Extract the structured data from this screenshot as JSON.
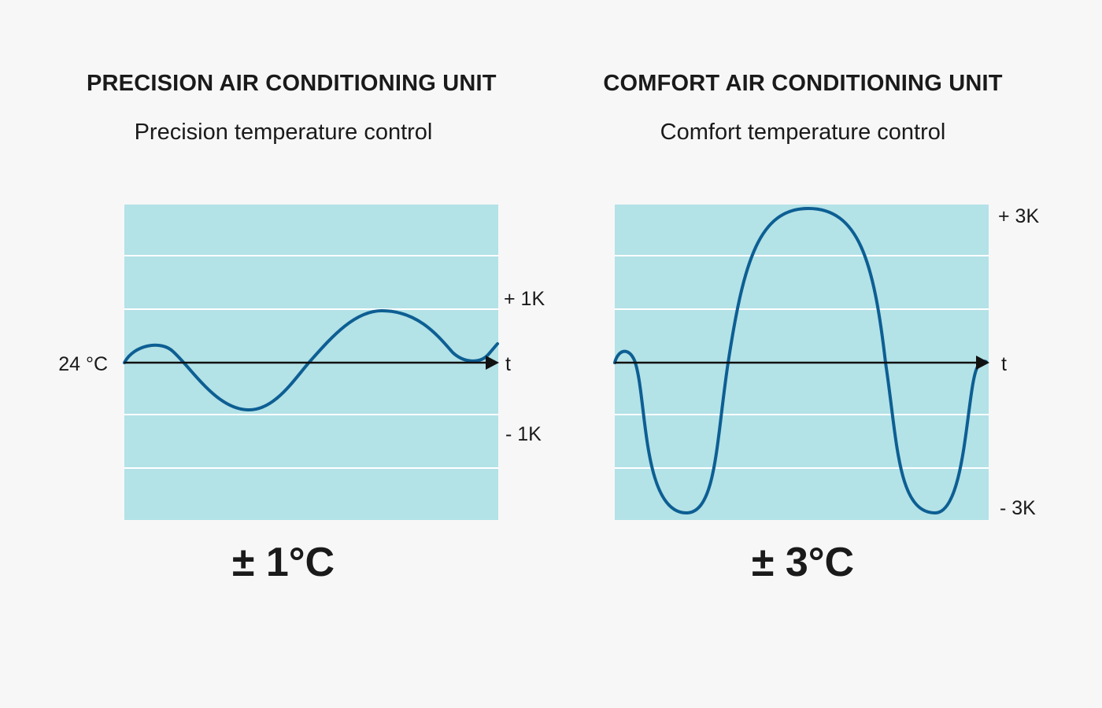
{
  "panels": {
    "left": {
      "title": "PRECISION AIR CONDITIONING UNIT",
      "subtitle": "Precision temperature control",
      "tolerance": "± 1°C",
      "upper_label": "+ 1K",
      "lower_label": "- 1K",
      "time_label": "t",
      "baseline_label": "24 °C"
    },
    "right": {
      "title": "COMFORT AIR CONDITIONING UNIT",
      "subtitle": "Comfort temperature control",
      "tolerance": "± 3°C",
      "upper_label": "+ 3K",
      "lower_label": "- 3K",
      "time_label": "t"
    }
  },
  "colors": {
    "band": "#b3e2e7",
    "curve": "#0d5f93",
    "axis": "#111111",
    "gridline": "#ffffff"
  }
}
